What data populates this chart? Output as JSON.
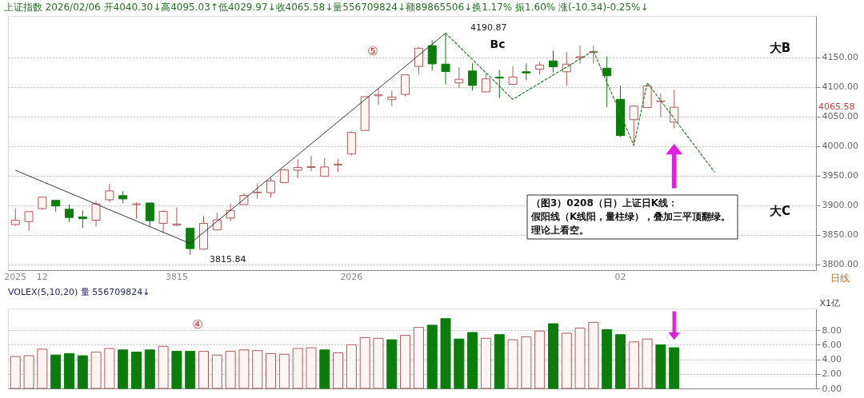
{
  "chart_data": [
    {
      "type": "candlestick",
      "title": "上证指数 2026/02/06 开4040.30↓高4095.03↑低4029.97↓收4065.58↓量556709824↓额89865506↓换1.17% 振1.60% 涨(-10.34)-0.25%↓",
      "categories": [
        "2025",
        null,
        "12",
        null,
        null,
        null,
        null,
        null,
        null,
        null,
        null,
        null,
        "3815",
        null,
        null,
        null,
        null,
        null,
        null,
        null,
        null,
        null,
        null,
        null,
        null,
        "2026",
        null,
        null,
        null,
        null,
        null,
        null,
        null,
        null,
        null,
        null,
        null,
        null,
        null,
        null,
        null,
        null,
        null,
        null,
        null,
        "02",
        null,
        null,
        null,
        null,
        null,
        null,
        null,
        null,
        null,
        null,
        null,
        null,
        null,
        null
      ],
      "ohlc": [
        [
          3867,
          3895,
          3865,
          3874.5
        ],
        [
          3872,
          3889,
          3856,
          3889
        ],
        [
          3894,
          3914,
          3892,
          3913.5
        ],
        [
          3908,
          3908,
          3889,
          3898.5
        ],
        [
          3893,
          3901,
          3871.5,
          3879
        ],
        [
          3880,
          3891,
          3861,
          3877
        ],
        [
          3874.5,
          3907,
          3864,
          3902
        ],
        [
          3909,
          3936,
          3905,
          3924
        ],
        [
          3916,
          3923.5,
          3903,
          3910.5
        ],
        [
          3901,
          3904.5,
          3877,
          3902
        ],
        [
          3903.6,
          3904,
          3864,
          3873.6
        ],
        [
          3869,
          3891,
          3852,
          3889.5
        ],
        [
          3866,
          3896,
          3864,
          3868
        ],
        [
          3860.7,
          3861,
          3815.84,
          3826.4
        ],
        [
          3825.5,
          3882,
          3825,
          3869
        ],
        [
          3858,
          3887,
          3858,
          3875
        ],
        [
          3878,
          3902.4,
          3873,
          3891
        ],
        [
          3901,
          3920,
          3901,
          3916.5
        ],
        [
          3921,
          3937,
          3911,
          3922
        ],
        [
          3921,
          3946,
          3913,
          3941
        ],
        [
          3938,
          3961.6,
          3937,
          3959.4
        ],
        [
          3959,
          3977.5,
          3945.7,
          3963.7
        ],
        [
          3963.7,
          3983,
          3957,
          3965
        ],
        [
          3948.7,
          3979.6,
          3948.7,
          3964.6
        ],
        [
          3968,
          3978,
          3956,
          3969.3
        ],
        [
          3986.5,
          4024.7,
          3984,
          4023
        ],
        [
          4026.4,
          4084,
          4026,
          4083.5
        ],
        [
          4085,
          4097.6,
          4069.7,
          4086.5
        ],
        [
          4078.3,
          4094,
          4067.6,
          4083
        ],
        [
          4087.3,
          4121,
          4084,
          4120.4
        ],
        [
          4134.5,
          4167.6,
          4120.4,
          4165.5
        ],
        [
          4169.8,
          4179,
          4127.4,
          4139
        ],
        [
          4138.5,
          4190.87,
          4104.4,
          4126
        ],
        [
          4106.7,
          4133,
          4097.5,
          4113
        ],
        [
          4127,
          4140,
          4094,
          4102.5
        ],
        [
          4091.5,
          4123.7,
          4091.5,
          4113.6
        ],
        [
          4116.4,
          4128.3,
          4081.3,
          4115
        ],
        [
          4104.4,
          4135,
          4104.4,
          4116.8
        ],
        [
          4125.6,
          4140,
          4111,
          4123.7
        ],
        [
          4130,
          4143,
          4121,
          4137
        ],
        [
          4144,
          4161.5,
          4124.6,
          4134
        ],
        [
          4125.6,
          4159,
          4102,
          4138.5
        ],
        [
          4149.5,
          4169.8,
          4139,
          4151
        ],
        [
          4158.3,
          4169.8,
          4139,
          4159.7
        ],
        [
          4131.6,
          4151.4,
          4066,
          4119
        ],
        [
          4079,
          4102,
          4015.4,
          4017.7
        ],
        [
          4044.5,
          4069.4,
          4001,
          4067.5
        ],
        [
          4065.2,
          4104,
          4065,
          4101.6
        ],
        [
          4075.3,
          4089,
          4049,
          4076.3
        ],
        [
          4040.3,
          4095.03,
          4029.97,
          4065.58
        ],
        null,
        null,
        null,
        null,
        null,
        null,
        null,
        null,
        null,
        null
      ],
      "colors": [
        "#fdf4f4",
        "#fdf4f4",
        "#fdf4f4",
        "#0a7d0a",
        "#0a7d0a",
        "#0a7d0a",
        "#fdf4f4",
        "#fdf4f4",
        "#0a7d0a",
        "#fdf4f4",
        "#0a7d0a",
        "#fdf4f4",
        "#fdf4f4",
        "#0a7d0a",
        "#fdf4f4",
        "#fdf4f4",
        "#fdf4f4",
        "#fdf4f4",
        "#fdf4f4",
        "#fdf4f4",
        "#fdf4f4",
        "#fdf4f4",
        "#fdf4f4",
        "#fdf4f4",
        "#fdf4f4",
        "#fdf4f4",
        "#fdf4f4",
        "#fdf4f4",
        "#fdf4f4",
        "#fdf4f4",
        "#fdf4f4",
        "#0a7d0a",
        "#0a7d0a",
        "#fdf4f4",
        "#0a7d0a",
        "#fdf4f4",
        "#0a7d0a",
        "#fdf4f4",
        "#0a7d0a",
        "#fdf4f4",
        "#0a7d0a",
        "#fdf4f4",
        "#fdf4f4",
        "#fdf4f4",
        "#0a7d0a",
        "#0a7d0a",
        "#fdf4f4",
        "#fdf4f4",
        "#fdf4f4",
        "#fdf4f4",
        null,
        null,
        null,
        null,
        null,
        null,
        null,
        null,
        null,
        null
      ],
      "series": [
        {
          "type": "line",
          "color": "#222222",
          "values": [
            3959,
            null,
            null,
            null,
            null,
            null,
            null,
            null,
            null,
            null,
            null,
            null,
            null,
            3835,
            null,
            null,
            null,
            null,
            null,
            null,
            null,
            null,
            null,
            null,
            null,
            null,
            null,
            null,
            null,
            null,
            null,
            null,
            4191,
            null,
            null,
            null,
            null,
            null,
            null,
            null,
            null,
            null,
            null,
            null,
            null,
            null,
            null,
            null,
            null,
            null,
            null,
            null,
            null,
            null,
            null,
            null,
            null,
            null,
            null,
            null
          ]
        },
        {
          "type": "line",
          "color": "#2e7d32",
          "line_style": "dashed",
          "values": [
            null,
            null,
            null,
            null,
            null,
            null,
            null,
            null,
            null,
            null,
            null,
            null,
            null,
            null,
            null,
            null,
            null,
            null,
            null,
            null,
            null,
            null,
            null,
            null,
            null,
            null,
            null,
            null,
            null,
            null,
            null,
            null,
            4191,
            null,
            null,
            null,
            null,
            4079,
            null,
            null,
            null,
            null,
            null,
            4161,
            null,
            null,
            4001,
            4107,
            null,
            null,
            null,
            null,
            3956,
            null,
            null,
            null,
            null,
            null,
            null,
            null
          ]
        }
      ],
      "ylim": [
        3790,
        4220
      ],
      "yticks": [
        {
          "value": 3800,
          "label": "3800.00"
        },
        {
          "value": 3850,
          "label": "3850.00"
        },
        {
          "value": 3900,
          "label": "3900.00"
        },
        {
          "value": 3950,
          "label": "3950.00"
        },
        {
          "value": 4000,
          "label": "4000.00"
        },
        {
          "value": 4050,
          "label": "4050.00"
        },
        {
          "value": 4100,
          "label": "4100.00"
        },
        {
          "value": 4150,
          "label": "4150.00"
        }
      ],
      "grid": "y",
      "annotations": [
        "4190.87",
        "3815.84",
        "Bc",
        "大B",
        "大C",
        "⑤",
        "（图3）0208（日）上证日K线：",
        "假阳线（K线阳，量柱绿），叠加三平顶翻绿。",
        "理论上看空。",
        "日线",
        "4065.58"
      ]
    },
    {
      "type": "bar",
      "title": "VOLEX(5,10,20) 量 556709824↓",
      "ylabel": "X1亿",
      "categories": [
        "2025",
        null,
        "12",
        null,
        null,
        null,
        null,
        null,
        null,
        null,
        null,
        null,
        "3815",
        null,
        null,
        null,
        null,
        null,
        null,
        null,
        null,
        null,
        null,
        null,
        null,
        "2026",
        null,
        null,
        null,
        null,
        null,
        null,
        null,
        null,
        null,
        null,
        null,
        null,
        null,
        null,
        null,
        null,
        null,
        null,
        null,
        "02",
        null,
        null,
        null,
        null,
        null,
        null,
        null,
        null,
        null,
        null,
        null,
        null,
        null,
        null
      ],
      "values": [
        4.4,
        4.5,
        5.4,
        4.6,
        4.8,
        4.5,
        5.0,
        5.5,
        5.3,
        5.0,
        5.3,
        5.8,
        5.1,
        5.1,
        5.1,
        4.6,
        5.1,
        5.3,
        5.2,
        4.8,
        4.7,
        5.5,
        5.6,
        5.3,
        4.9,
        6.0,
        7.0,
        6.9,
        6.7,
        7.3,
        8.4,
        8.7,
        9.6,
        6.8,
        7.7,
        6.9,
        7.4,
        6.7,
        7.1,
        7.9,
        8.9,
        7.6,
        8.3,
        9.1,
        8.1,
        7.4,
        6.4,
        6.8,
        6.0,
        5.6,
        null,
        null,
        null,
        null,
        null,
        null,
        null,
        null,
        null,
        null
      ],
      "colors": [
        "#fdf4f4",
        "#fdf4f4",
        "#fdf4f4",
        "#0a7d0a",
        "#0a7d0a",
        "#0a7d0a",
        "#fdf4f4",
        "#fdf4f4",
        "#0a7d0a",
        "#0a7d0a",
        "#0a7d0a",
        "#fdf4f4",
        "#0a7d0a",
        "#0a7d0a",
        "#fdf4f4",
        "#fdf4f4",
        "#fdf4f4",
        "#fdf4f4",
        "#fdf4f4",
        "#fdf4f4",
        "#fdf4f4",
        "#fdf4f4",
        "#fdf4f4",
        "#0a7d0a",
        "#fdf4f4",
        "#fdf4f4",
        "#fdf4f4",
        "#fdf4f4",
        "#0a7d0a",
        "#fdf4f4",
        "#fdf4f4",
        "#0a7d0a",
        "#0a7d0a",
        "#0a7d0a",
        "#0a7d0a",
        "#fdf4f4",
        "#0a7d0a",
        "#fdf4f4",
        "#fdf4f4",
        "#fdf4f4",
        "#0a7d0a",
        "#fdf4f4",
        "#fdf4f4",
        "#fdf4f4",
        "#0a7d0a",
        "#0a7d0a",
        "#fdf4f4",
        "#fdf4f4",
        "#0a7d0a",
        "#0a7d0a",
        null,
        null,
        null,
        null,
        null,
        null,
        null,
        null,
        null,
        null
      ],
      "ylim": [
        0,
        11
      ],
      "yticks": [
        {
          "value": 0,
          "label": "0.00"
        },
        {
          "value": 2,
          "label": "2.00"
        },
        {
          "value": 4,
          "label": "4.00"
        },
        {
          "value": 6,
          "label": "6.00"
        },
        {
          "value": 8,
          "label": "8.00"
        }
      ],
      "grid": "y",
      "tick_labels": "y",
      "annotations": [
        "④"
      ]
    }
  ]
}
